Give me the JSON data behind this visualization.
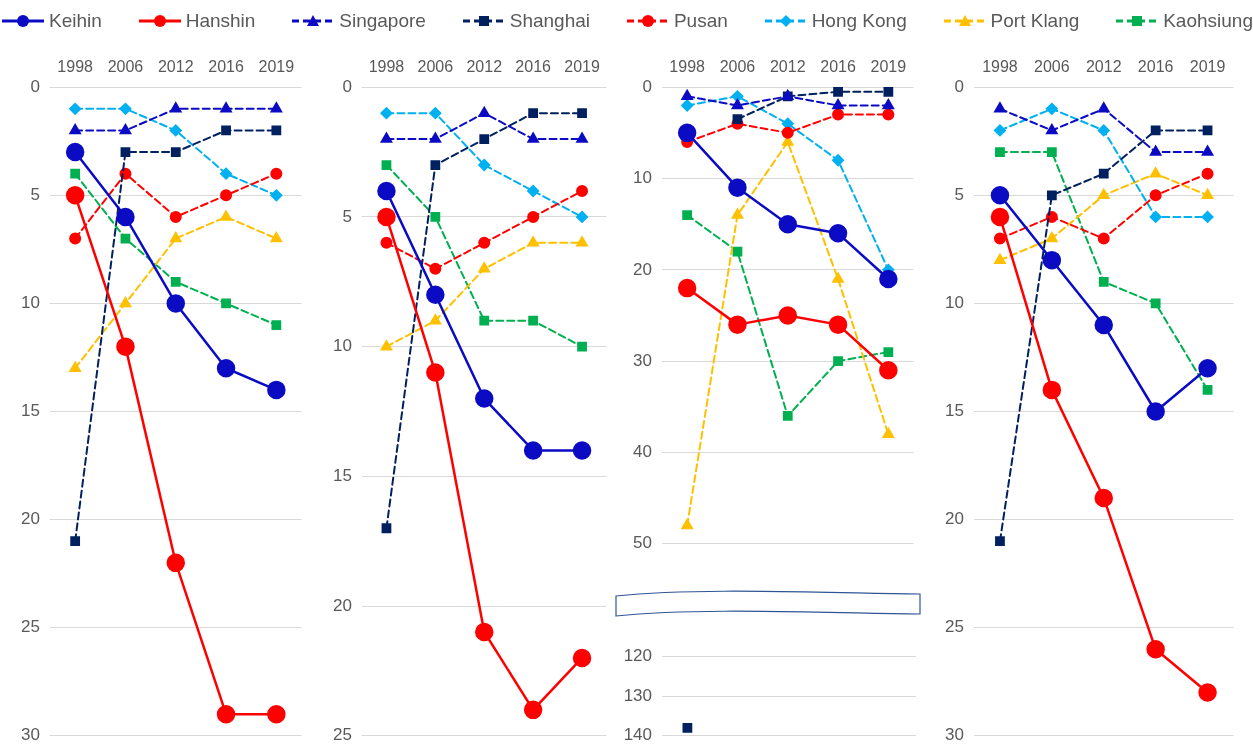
{
  "chart_data": [
    {
      "type": "line",
      "categories": [
        "1998",
        "2006",
        "2012",
        "2016",
        "2019"
      ],
      "ylim": [
        30,
        0
      ],
      "yticks": [
        0,
        5,
        10,
        15,
        20,
        25,
        30
      ],
      "grid": "y",
      "legend": "top",
      "series": [
        {
          "name": "Keihin",
          "color": "#0b0bc4",
          "marker": "circle",
          "line_style": "solid",
          "values": [
            3,
            6,
            10,
            13,
            14
          ]
        },
        {
          "name": "Hanshin",
          "color": "#ff0000",
          "marker": "circle",
          "line_style": "solid",
          "values": [
            5,
            12,
            22,
            29,
            29
          ]
        },
        {
          "name": "Singapore",
          "color": "#0b0bc4",
          "marker": "triangle",
          "line_style": "dashed",
          "values": [
            2,
            2,
            1,
            1,
            1
          ]
        },
        {
          "name": "Shanghai",
          "color": "#002060",
          "marker": "square",
          "line_style": "dashed",
          "values": [
            21,
            3,
            3,
            2,
            2
          ]
        },
        {
          "name": "Pusan",
          "color": "#ff0000",
          "marker": "circle",
          "line_style": "dashed",
          "values": [
            7,
            4,
            6,
            5,
            4
          ]
        },
        {
          "name": "Hong Kong",
          "color": "#00b0f0",
          "marker": "diamond",
          "line_style": "dashed",
          "values": [
            1,
            1,
            2,
            4,
            5
          ]
        },
        {
          "name": "Port Klang",
          "color": "#ffc000",
          "marker": "triangle",
          "line_style": "dashed",
          "values": [
            13,
            10,
            7,
            6,
            7
          ]
        },
        {
          "name": "Kaohsiung",
          "color": "#00b050",
          "marker": "square",
          "line_style": "dashed",
          "values": [
            4,
            7,
            9,
            10,
            11
          ]
        }
      ]
    },
    {
      "type": "line",
      "categories": [
        "1998",
        "2006",
        "2012",
        "2016",
        "2019"
      ],
      "ylim": [
        25,
        0
      ],
      "yticks": [
        0,
        5,
        10,
        15,
        20,
        25
      ],
      "grid": "y",
      "series": [
        {
          "color": "#0b0bc4",
          "marker": "circle",
          "line_style": "solid",
          "values": [
            4,
            8,
            12,
            14,
            14
          ]
        },
        {
          "color": "#ff0000",
          "marker": "circle",
          "line_style": "solid",
          "values": [
            5,
            11,
            21,
            24,
            22
          ]
        },
        {
          "color": "#0b0bc4",
          "marker": "triangle",
          "line_style": "dashed",
          "values": [
            2,
            2,
            1,
            2,
            2
          ]
        },
        {
          "color": "#002060",
          "marker": "square",
          "line_style": "dashed",
          "values": [
            17,
            3,
            2,
            1,
            1
          ]
        },
        {
          "color": "#ff0000",
          "marker": "circle",
          "line_style": "dashed",
          "values": [
            6,
            7,
            6,
            5,
            4
          ]
        },
        {
          "color": "#00b0f0",
          "marker": "diamond",
          "line_style": "dashed",
          "values": [
            1,
            1,
            3,
            4,
            5
          ]
        },
        {
          "color": "#ffc000",
          "marker": "triangle",
          "line_style": "dashed",
          "values": [
            10,
            9,
            7,
            6,
            6
          ]
        },
        {
          "color": "#00b050",
          "marker": "square",
          "line_style": "dashed",
          "values": [
            3,
            5,
            9,
            9,
            10
          ]
        }
      ]
    },
    {
      "type": "line",
      "categories": [
        "1998",
        "2006",
        "2012",
        "2016",
        "2019"
      ],
      "ylim": [
        50,
        0
      ],
      "yticks": [
        0,
        10,
        20,
        30,
        40,
        50
      ],
      "grid": "y",
      "series": [
        {
          "color": "#0b0bc4",
          "marker": "circle",
          "line_style": "solid",
          "values": [
            5,
            11,
            15,
            16,
            21
          ]
        },
        {
          "color": "#ff0000",
          "marker": "circle",
          "line_style": "solid",
          "values": [
            22,
            26,
            25,
            26,
            31
          ]
        },
        {
          "color": "#0b0bc4",
          "marker": "triangle",
          "line_style": "dashed",
          "values": [
            1,
            2,
            1,
            2,
            2
          ]
        },
        {
          "color": "#002060",
          "marker": "square",
          "line_style": "dashed",
          "values": [
            null,
            3.5,
            1,
            0.5,
            0.5
          ]
        },
        {
          "color": "#ff0000",
          "marker": "circle",
          "line_style": "dashed",
          "values": [
            6,
            4,
            5,
            3,
            3
          ]
        },
        {
          "color": "#00b0f0",
          "marker": "diamond",
          "line_style": "dashed",
          "values": [
            2,
            1,
            4,
            8,
            20
          ]
        },
        {
          "color": "#ffc000",
          "marker": "triangle",
          "line_style": "dashed",
          "values": [
            48,
            14,
            6,
            21,
            38
          ]
        },
        {
          "color": "#00b050",
          "marker": "square",
          "line_style": "dashed",
          "values": [
            14,
            18,
            36,
            30,
            29
          ]
        }
      ]
    },
    {
      "type": "line",
      "categories": [
        "1998",
        "2006",
        "2012",
        "2016",
        "2019"
      ],
      "ylim": [
        140,
        120
      ],
      "yticks": [
        120,
        130,
        140
      ],
      "grid": "y",
      "tick_labels": "y",
      "series": [
        {
          "color": "#002060",
          "marker": "square",
          "line_style": "dashed",
          "values": [
            138,
            null,
            null,
            null,
            null
          ]
        }
      ]
    },
    {
      "type": "line",
      "categories": [
        "1998",
        "2006",
        "2012",
        "2016",
        "2019"
      ],
      "ylim": [
        30,
        0
      ],
      "yticks": [
        0,
        5,
        10,
        15,
        20,
        25,
        30
      ],
      "grid": "y",
      "series": [
        {
          "color": "#0b0bc4",
          "marker": "circle",
          "line_style": "solid",
          "values": [
            5,
            8,
            11,
            15,
            13
          ]
        },
        {
          "color": "#ff0000",
          "marker": "circle",
          "line_style": "solid",
          "values": [
            6,
            14,
            19,
            26,
            28
          ]
        },
        {
          "color": "#0b0bc4",
          "marker": "triangle",
          "line_style": "dashed",
          "values": [
            1,
            2,
            1,
            3,
            3
          ]
        },
        {
          "color": "#002060",
          "marker": "square",
          "line_style": "dashed",
          "values": [
            21,
            5,
            4,
            2,
            2
          ]
        },
        {
          "color": "#ff0000",
          "marker": "circle",
          "line_style": "dashed",
          "values": [
            7,
            6,
            7,
            5,
            4
          ]
        },
        {
          "color": "#00b0f0",
          "marker": "diamond",
          "line_style": "dashed",
          "values": [
            2,
            1,
            2,
            6,
            6
          ]
        },
        {
          "color": "#ffc000",
          "marker": "triangle",
          "line_style": "dashed",
          "values": [
            8,
            7,
            5,
            4,
            5
          ]
        },
        {
          "color": "#00b050",
          "marker": "square",
          "line_style": "dashed",
          "values": [
            3,
            3,
            9,
            10,
            14
          ]
        }
      ]
    }
  ]
}
